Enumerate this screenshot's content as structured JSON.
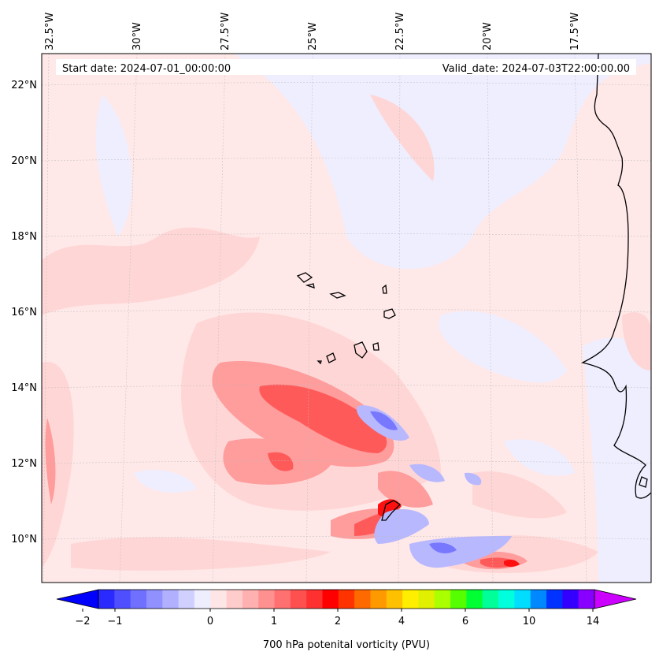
{
  "header": {
    "start_date": "Start date: 2024-07-01_00:00:00",
    "valid_date": "Valid_date: 2024-07-03T22:00:00.00"
  },
  "longitude_labels": [
    "32.5°W",
    "30°W",
    "27.5°W",
    "25°W",
    "22.5°W",
    "20°W",
    "17.5°W"
  ],
  "latitude_labels": [
    "22°N",
    "20°N",
    "18°N",
    "16°N",
    "14°N",
    "12°N",
    "10°N"
  ],
  "colorbar": {
    "tick_labels": [
      "−2",
      "−1",
      "0",
      "1",
      "2",
      "4",
      "6",
      "10",
      "14"
    ],
    "label": "700 hPa potenital vorticity (PVU)",
    "colors": [
      "#0000ff",
      "#2a2aff",
      "#4f4fff",
      "#7070ff",
      "#9090ff",
      "#b0b0ff",
      "#d0d0ff",
      "#eeeeff",
      "#ffe6e6",
      "#ffcccc",
      "#ffb0b0",
      "#ff9090",
      "#ff7070",
      "#ff5050",
      "#ff3030",
      "#ff0000",
      "#ff3300",
      "#ff6a00",
      "#ff9900",
      "#ffc000",
      "#ffee00",
      "#e0f000",
      "#aaff00",
      "#55ff00",
      "#00ff33",
      "#00ff99",
      "#00ffdd",
      "#00ddff",
      "#0088ff",
      "#0033ff",
      "#3300ff",
      "#8800ff",
      "#cc00ff"
    ]
  },
  "field_colors": {
    "background": "#ffe8e8",
    "low_neg": "#eeeeff",
    "mid_neg": "#b8b8ff",
    "strong_neg": "#7878ff",
    "low_pos": "#ffd6d6",
    "mid_pos": "#ff9c9c",
    "strong_pos": "#ff5a5a",
    "max_pos": "#ff1010"
  }
}
